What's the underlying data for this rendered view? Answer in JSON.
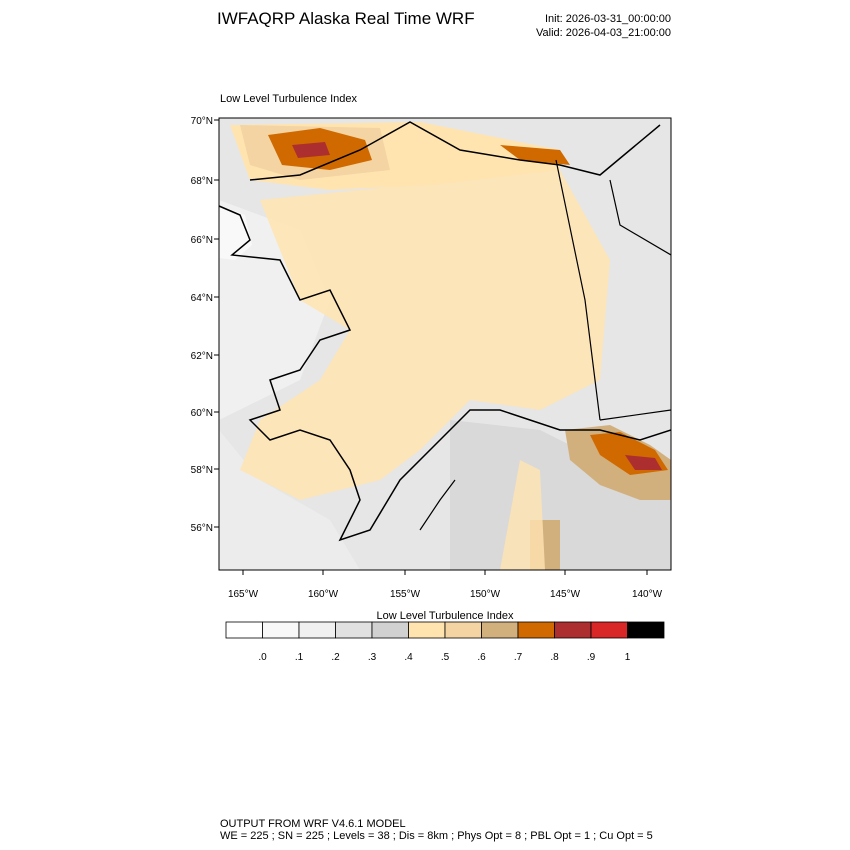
{
  "header": {
    "title": "IWFAQRP Alaska Real Time WRF",
    "init": "Init: 2026-03-31_00:00:00",
    "valid": "Valid: 2026-04-03_21:00:00"
  },
  "map": {
    "label": "Low Level Turbulence Index",
    "lat_labels": [
      "70°N",
      "68°N",
      "66°N",
      "64°N",
      "62°N",
      "60°N",
      "58°N",
      "56°N"
    ],
    "lon_labels": [
      "165°W",
      "160°W",
      "155°W",
      "150°W",
      "145°W",
      "140°W"
    ]
  },
  "colorbar": {
    "title": "Low Level Turbulence Index",
    "colors": [
      "#ffffff",
      "#f8f8f8",
      "#f0f0f0",
      "#e1e1e1",
      "#d1d1d1",
      "#ffe4b0",
      "#f3d4a2",
      "#d2b07e",
      "#d06a00",
      "#ad2e2e",
      "#d92626",
      "#000000"
    ],
    "labels": [
      ".0",
      ".1",
      ".2",
      ".3",
      ".4",
      ".5",
      ".6",
      ".7",
      ".8",
      ".9",
      "1"
    ]
  },
  "footer": {
    "line1": "OUTPUT FROM WRF V4.6.1 MODEL",
    "line2": "WE = 225 ; SN = 225 ; Levels = 38 ; Dis = 8km ; Phys Opt = 8 ; PBL Opt = 1 ; Cu Opt = 5"
  }
}
